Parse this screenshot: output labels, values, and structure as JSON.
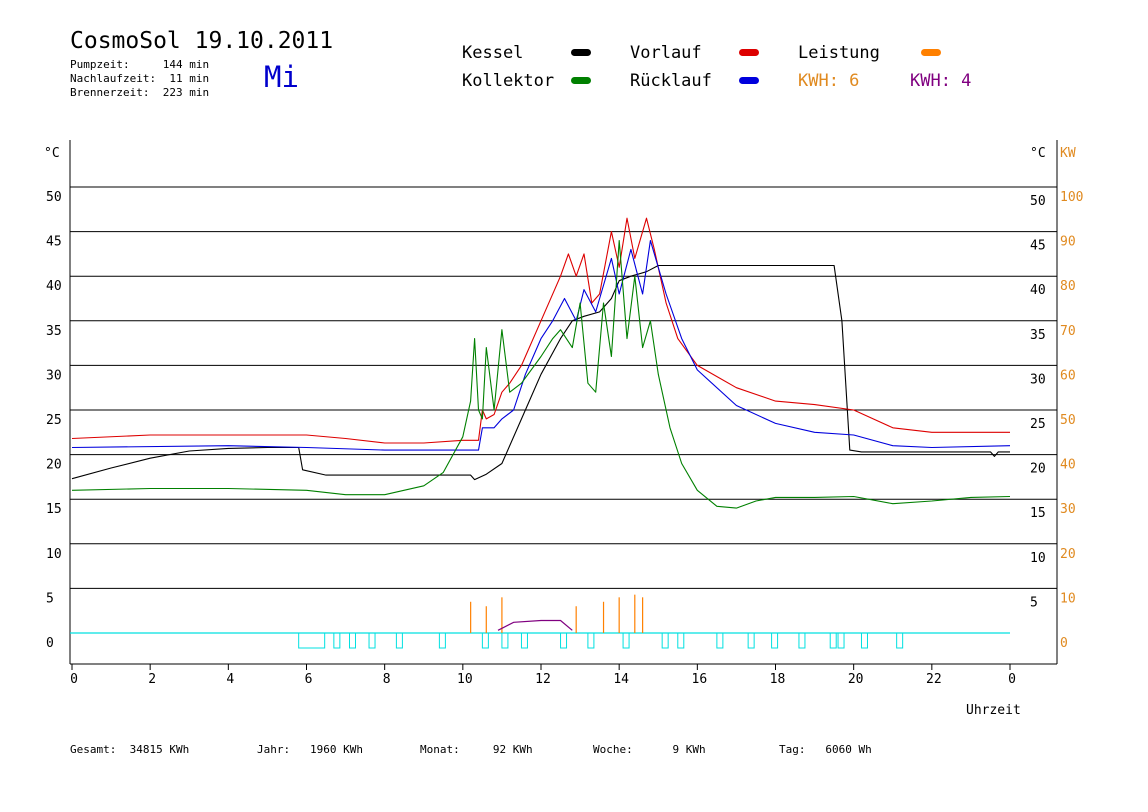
{
  "header": {
    "title": "CosmoSol 19.10.2011",
    "weekday": "Mi",
    "pump_time": "Pumpzeit:     144 min",
    "overrun_time": "Nachlaufzeit:  11 min",
    "burner_time": "Brennerzeit:  223 min"
  },
  "legend": {
    "kessel": {
      "label": "Kessel",
      "color": "#000000"
    },
    "vorlauf": {
      "label": "Vorlauf",
      "color": "#dd0000"
    },
    "leistung": {
      "label": "Leistung",
      "color": "#ff8000"
    },
    "kollektor": {
      "label": "Kollektor",
      "color": "#008000"
    },
    "ruecklauf": {
      "label": "Rücklauf",
      "color": "#0000dd"
    },
    "kwh_a": {
      "label": "KWH: 6",
      "color": "#e08a20"
    },
    "kwh_b": {
      "label": "KWH: 4",
      "color": "#800080"
    }
  },
  "footer": {
    "gesamt": "Gesamt:  34815 KWh",
    "jahr": "Jahr:   1960 KWh",
    "monat": "Monat:     92 KWh",
    "woche": "Woche:      9 KWh",
    "tag": "Tag:   6060 Wh"
  },
  "chart_data": {
    "type": "line",
    "xlabel": "Uhrzeit",
    "ylabel_left": "°C",
    "ylabel_right_1": "°C",
    "ylabel_right_2": "KW",
    "x_ticks": [
      "0",
      "2",
      "4",
      "6",
      "8",
      "10",
      "12",
      "14",
      "16",
      "18",
      "20",
      "22",
      "0"
    ],
    "xlim": [
      0,
      24
    ],
    "ylim": [
      -3.5,
      52
    ],
    "y_left_ticks": [
      0,
      5,
      10,
      15,
      20,
      25,
      30,
      35,
      40,
      45,
      50
    ],
    "y_right_ticks": [
      5,
      10,
      15,
      20,
      25,
      30,
      35,
      40,
      45,
      50
    ],
    "y_right2_ticks": [
      0,
      10,
      20,
      30,
      40,
      50,
      60,
      70,
      80,
      90,
      100
    ],
    "grid": true,
    "series": [
      {
        "name": "Kessel",
        "color": "#000000",
        "points": [
          [
            0,
            17.3
          ],
          [
            1,
            18.5
          ],
          [
            2,
            19.6
          ],
          [
            3,
            20.4
          ],
          [
            4,
            20.7
          ],
          [
            5,
            20.8
          ],
          [
            5.8,
            20.8
          ],
          [
            5.9,
            18.3
          ],
          [
            6.5,
            17.7
          ],
          [
            8,
            17.7
          ],
          [
            10.2,
            17.7
          ],
          [
            10.3,
            17.2
          ],
          [
            10.6,
            17.8
          ],
          [
            11,
            19
          ],
          [
            11.5,
            24
          ],
          [
            12,
            29
          ],
          [
            12.5,
            33
          ],
          [
            12.8,
            35
          ],
          [
            13.1,
            35.5
          ],
          [
            13.5,
            36
          ],
          [
            13.8,
            37.5
          ],
          [
            14,
            39.5
          ],
          [
            14.3,
            40
          ],
          [
            14.7,
            40.5
          ],
          [
            15,
            41.2
          ],
          [
            17,
            41.2
          ],
          [
            19.5,
            41.2
          ],
          [
            19.7,
            35
          ],
          [
            19.9,
            20.5
          ],
          [
            20.2,
            20.3
          ],
          [
            22,
            20.3
          ],
          [
            23.5,
            20.3
          ],
          [
            23.6,
            19.8
          ],
          [
            23.7,
            20.3
          ],
          [
            24,
            20.3
          ]
        ]
      },
      {
        "name": "Vorlauf",
        "color": "#dd0000",
        "points": [
          [
            0,
            21.8
          ],
          [
            2,
            22.2
          ],
          [
            4,
            22.2
          ],
          [
            6,
            22.2
          ],
          [
            7,
            21.8
          ],
          [
            8,
            21.3
          ],
          [
            9,
            21.3
          ],
          [
            10,
            21.6
          ],
          [
            10.4,
            21.6
          ],
          [
            10.5,
            25
          ],
          [
            10.6,
            24
          ],
          [
            10.8,
            24.5
          ],
          [
            11,
            27
          ],
          [
            11.2,
            28
          ],
          [
            11.5,
            30
          ],
          [
            12,
            35
          ],
          [
            12.5,
            40
          ],
          [
            12.7,
            42.5
          ],
          [
            12.9,
            40
          ],
          [
            13.1,
            42.5
          ],
          [
            13.3,
            37
          ],
          [
            13.5,
            38
          ],
          [
            13.8,
            45
          ],
          [
            14,
            41
          ],
          [
            14.2,
            46.5
          ],
          [
            14.4,
            42
          ],
          [
            14.7,
            46.5
          ],
          [
            14.9,
            43
          ],
          [
            15.2,
            37
          ],
          [
            15.5,
            33
          ],
          [
            16,
            30
          ],
          [
            17,
            27.5
          ],
          [
            18,
            26
          ],
          [
            19,
            25.6
          ],
          [
            20,
            25
          ],
          [
            20.5,
            24
          ],
          [
            21,
            23
          ],
          [
            22,
            22.5
          ],
          [
            24,
            22.5
          ]
        ]
      },
      {
        "name": "Rücklauf",
        "color": "#0000dd",
        "points": [
          [
            0,
            20.8
          ],
          [
            4,
            21
          ],
          [
            6,
            20.8
          ],
          [
            8,
            20.5
          ],
          [
            10,
            20.5
          ],
          [
            10.4,
            20.5
          ],
          [
            10.5,
            23
          ],
          [
            10.8,
            23
          ],
          [
            11,
            24
          ],
          [
            11.3,
            25
          ],
          [
            11.6,
            29
          ],
          [
            12,
            33
          ],
          [
            12.3,
            35
          ],
          [
            12.6,
            37.5
          ],
          [
            12.9,
            35
          ],
          [
            13.1,
            38.5
          ],
          [
            13.4,
            36
          ],
          [
            13.8,
            42
          ],
          [
            14,
            38
          ],
          [
            14.3,
            43
          ],
          [
            14.6,
            38
          ],
          [
            14.8,
            44
          ],
          [
            15.2,
            38
          ],
          [
            15.6,
            33
          ],
          [
            16,
            29.5
          ],
          [
            17,
            25.5
          ],
          [
            18,
            23.5
          ],
          [
            19,
            22.5
          ],
          [
            20,
            22.2
          ],
          [
            21,
            21
          ],
          [
            22,
            20.8
          ],
          [
            24,
            21
          ]
        ]
      },
      {
        "name": "Kollektor",
        "color": "#008000",
        "points": [
          [
            0,
            16
          ],
          [
            2,
            16.2
          ],
          [
            4,
            16.2
          ],
          [
            6,
            16
          ],
          [
            7,
            15.5
          ],
          [
            8,
            15.5
          ],
          [
            9,
            16.5
          ],
          [
            9.5,
            18
          ],
          [
            10,
            22
          ],
          [
            10.2,
            26
          ],
          [
            10.3,
            33
          ],
          [
            10.4,
            25
          ],
          [
            10.5,
            24
          ],
          [
            10.6,
            32
          ],
          [
            10.8,
            25
          ],
          [
            11,
            34
          ],
          [
            11.2,
            27
          ],
          [
            11.5,
            28
          ],
          [
            12,
            31
          ],
          [
            12.3,
            33
          ],
          [
            12.5,
            34
          ],
          [
            12.8,
            32
          ],
          [
            13,
            37
          ],
          [
            13.2,
            28
          ],
          [
            13.4,
            27
          ],
          [
            13.6,
            37
          ],
          [
            13.8,
            31
          ],
          [
            14,
            44
          ],
          [
            14.2,
            33
          ],
          [
            14.4,
            40
          ],
          [
            14.6,
            32
          ],
          [
            14.8,
            35
          ],
          [
            15,
            29
          ],
          [
            15.3,
            23
          ],
          [
            15.6,
            19
          ],
          [
            16,
            16
          ],
          [
            16.5,
            14.2
          ],
          [
            17,
            14
          ],
          [
            17.5,
            14.8
          ],
          [
            18,
            15.2
          ],
          [
            19,
            15.2
          ],
          [
            20,
            15.3
          ],
          [
            21,
            14.5
          ],
          [
            22,
            14.8
          ],
          [
            23,
            15.2
          ],
          [
            24,
            15.3
          ]
        ]
      }
    ]
  }
}
